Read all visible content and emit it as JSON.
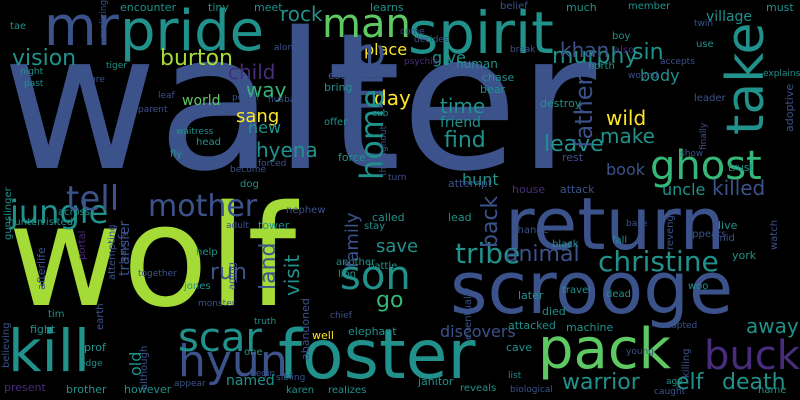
{
  "background": "#000000",
  "palette": {
    "lime": "#a5db36",
    "green": "#5ec962",
    "teal": "#21918c",
    "blue": "#3b528b",
    "indigo": "#472d7b",
    "purple": "#440154",
    "yellow": "#fde725",
    "seafoam": "#35b779"
  },
  "words": {
    "walter": "walter",
    "wolf": "wolf",
    "return": "return",
    "scrooge": "scrooge",
    "foster": "foster",
    "pack": "pack",
    "kill": "kill",
    "spirit": "spirit",
    "pride": "pride",
    "mr": "mr",
    "man": "man",
    "take": "take",
    "life": "life",
    "home": "home",
    "ghost": "ghost",
    "hyun": "hyun",
    "scar": "scar",
    "son": "son",
    "jungle": "jungle",
    "tell": "tell",
    "mother": "mother",
    "tribe": "tribe",
    "christine": "christine",
    "animal": "animal",
    "buck": "buck",
    "warrior": "warrior",
    "elf": "elf",
    "death": "death",
    "rock": "rock",
    "murphy": "murphy",
    "sin": "sin",
    "khan": "khan",
    "burton": "burton",
    "vision": "vision",
    "child": "child",
    "way": "way",
    "sang": "sang",
    "hyena": "hyena",
    "day": "day",
    "time": "time",
    "find": "find",
    "leave": "leave",
    "wild": "wild",
    "make": "make",
    "father": "father",
    "back": "back",
    "run": "run",
    "land": "land",
    "visit": "visit",
    "save": "save",
    "family": "family",
    "go": "go",
    "away": "away",
    "killed": "killed",
    "book": "book",
    "uncle": "uncle",
    "hunt": "hunt",
    "world": "world",
    "new": "new",
    "old": "old",
    "discovers": "discovers",
    "named": "named",
    "encounter": "encounter",
    "tiny": "tiny",
    "meet": "meet",
    "learns": "learns",
    "belief": "belief",
    "much": "much",
    "member": "member",
    "must": "must",
    "village": "village",
    "twin": "twin",
    "use": "use",
    "explains": "explains",
    "adoptive": "adoptive",
    "alone": "alone",
    "come": "come",
    "decides": "decides",
    "boy": "boy",
    "break": "break",
    "also": "also",
    "north": "north",
    "accepts": "accepts",
    "wound": "wound",
    "place": "place",
    "give": "give",
    "human": "human",
    "chase": "chase",
    "bear": "bear",
    "body": "body",
    "destroy": "destroy",
    "leader": "leader",
    "escape": "escape",
    "bring": "bring",
    "cub": "cub",
    "offer": "offer",
    "friend": "friend",
    "husband": "husband",
    "power": "power",
    "parent": "parent",
    "leaf": "leaf",
    "night": "night",
    "past": "past",
    "store": "store",
    "tiger": "tiger",
    "psychic": "psychic",
    "tae": "tae",
    "realizing": "realizing",
    "gunslinger": "gunslinger",
    "head": "head",
    "fly": "fly",
    "waitress": "waitress",
    "transfer": "transfer",
    "portal": "portal",
    "forced": "forced",
    "become": "become",
    "dog": "dog",
    "force": "force",
    "throughout": "throughout",
    "turn": "turn",
    "attempt": "attempt",
    "rest": "rest",
    "attack": "attack",
    "house": "house",
    "lead": "lead",
    "called": "called",
    "stay": "stay",
    "change": "change",
    "black": "black",
    "fall": "fall",
    "base": "base",
    "revenge": "revenge",
    "appears": "appears",
    "live": "live",
    "mid": "mid",
    "york": "york",
    "watch": "watch",
    "show": "show",
    "finally": "finally",
    "trust": "trust",
    "across": "across",
    "hunter": "hunter",
    "visited": "visited",
    "afterlife": "afterlife",
    "attempting": "attempting",
    "leaving": "leaving",
    "together": "together",
    "aging": "aging",
    "adult": "adult",
    "tower": "tower",
    "nephew": "nephew",
    "help": "help",
    "jones": "jones",
    "another": "another",
    "abandoned": "abandoned",
    "battle": "battle",
    "lion": "lion",
    "earth": "earth",
    "monster": "monster",
    "believing": "believing",
    "tim": "tim",
    "fight": "fight",
    "prof": "prof",
    "edge": "edge",
    "although": "although",
    "truth": "truth",
    "one": "one",
    "begin": "begin",
    "chief": "chief",
    "well": "well",
    "elephant": "elephant",
    "eventually": "eventually",
    "later": "later",
    "travel": "travel",
    "dead": "dead",
    "woo": "woo",
    "attacked": "attacked",
    "machine": "machine",
    "adopted": "adopted",
    "died": "died",
    "cave": "cave",
    "young": "young",
    "killing": "killing",
    "present": "present",
    "brother": "brother",
    "however": "however",
    "appear": "appear",
    "karen": "karen",
    "realizes": "realizes",
    "sibling": "sibling",
    "janitor": "janitor",
    "reveals": "reveals",
    "biological": "biological",
    "list": "list",
    "age": "age",
    "caught": "caught",
    "name": "name"
  }
}
